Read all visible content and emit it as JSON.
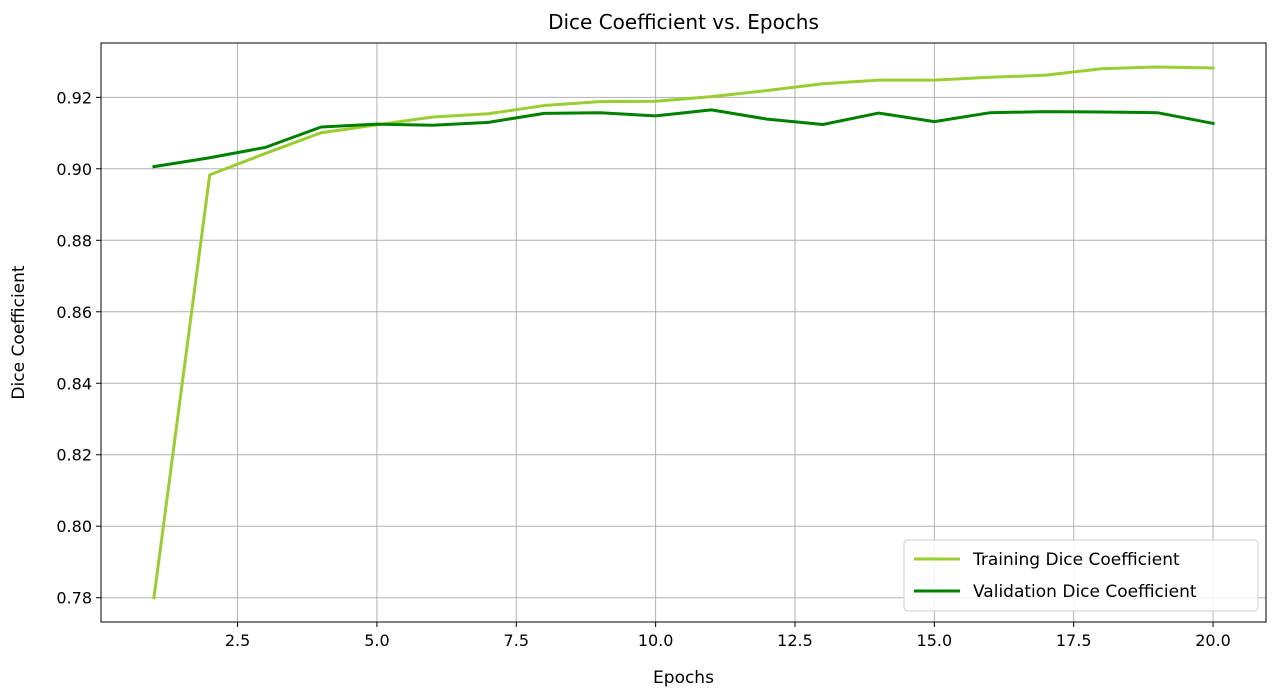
{
  "chart_data": {
    "type": "line",
    "title": "Dice Coefficient vs. Epochs",
    "xlabel": "Epochs",
    "ylabel": "Dice Coefficient",
    "xlim": [
      0.05,
      20.95
    ],
    "ylim": [
      0.7732,
      0.9352
    ],
    "xticks": [
      2.5,
      5.0,
      7.5,
      10.0,
      12.5,
      15.0,
      17.5,
      20.0
    ],
    "xtick_labels": [
      "2.5",
      "5.0",
      "7.5",
      "10.0",
      "12.5",
      "15.0",
      "17.5",
      "20.0"
    ],
    "yticks": [
      0.78,
      0.8,
      0.82,
      0.84,
      0.86,
      0.88,
      0.9,
      0.92
    ],
    "ytick_labels": [
      "0.78",
      "0.80",
      "0.82",
      "0.84",
      "0.86",
      "0.88",
      "0.90",
      "0.92"
    ],
    "grid": true,
    "legend_position": "lower-right",
    "x": [
      1,
      2,
      3,
      4,
      5,
      6,
      7,
      8,
      9,
      10,
      11,
      12,
      13,
      14,
      15,
      16,
      17,
      18,
      19,
      20
    ],
    "series": [
      {
        "name": "Training Dice Coefficient",
        "color": "#9acd32",
        "values": [
          0.78,
          0.8983,
          0.9043,
          0.9101,
          0.9123,
          0.9145,
          0.9154,
          0.9177,
          0.9188,
          0.9189,
          0.9202,
          0.9219,
          0.9238,
          0.9248,
          0.9248,
          0.9256,
          0.9262,
          0.928,
          0.9285,
          0.9282
        ]
      },
      {
        "name": "Validation Dice Coefficient",
        "color": "#008000",
        "values": [
          0.9006,
          0.9031,
          0.906,
          0.9117,
          0.9125,
          0.9122,
          0.913,
          0.9155,
          0.9157,
          0.9148,
          0.9165,
          0.9139,
          0.9124,
          0.9156,
          0.9132,
          0.9157,
          0.916,
          0.9159,
          0.9157,
          0.9127
        ]
      }
    ]
  }
}
